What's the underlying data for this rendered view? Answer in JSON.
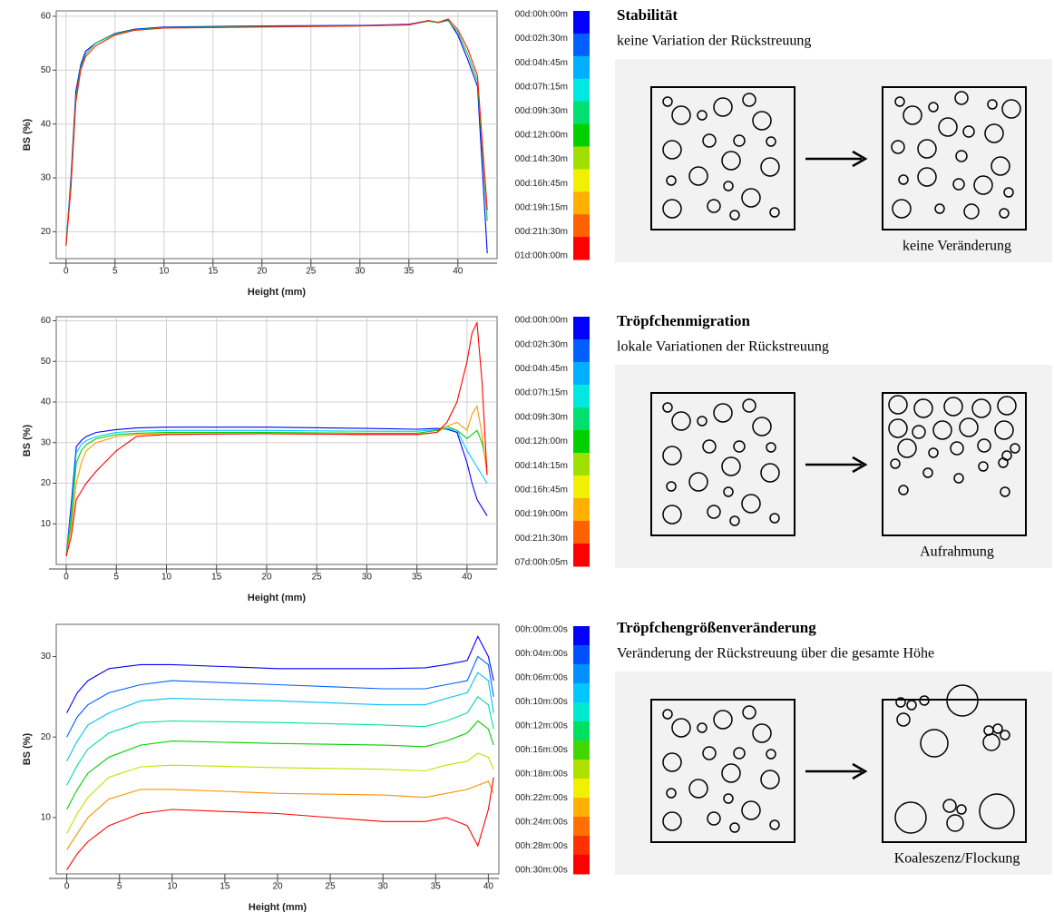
{
  "chart_data": [
    {
      "type": "line",
      "xlabel": "Height (mm)",
      "ylabel": "BS (%)",
      "xlim": [
        -1,
        44
      ],
      "ylim": [
        15,
        61
      ],
      "xticks": [
        0,
        5,
        10,
        15,
        20,
        25,
        30,
        35,
        40
      ],
      "yticks": [
        20,
        30,
        40,
        50,
        60
      ],
      "grid": true,
      "x": [
        0,
        0.5,
        1,
        1.5,
        2,
        3,
        5,
        7,
        10,
        20,
        30,
        35,
        37,
        38,
        39,
        40,
        41,
        42,
        43
      ],
      "series": [
        {
          "color": "#0000ff",
          "values": [
            17.5,
            30,
            46,
            51,
            53.5,
            55,
            56.8,
            57.6,
            58,
            58.2,
            58.3,
            58.5,
            59.2,
            58.8,
            59.3,
            56.5,
            52,
            47,
            16
          ]
        },
        {
          "color": "#00c850",
          "values": [
            17.6,
            29,
            45,
            50.5,
            53,
            55,
            56.7,
            57.5,
            57.9,
            58.1,
            58.2,
            58.4,
            59.1,
            58.8,
            59.2,
            57,
            53,
            48,
            22
          ]
        },
        {
          "color": "#ff2000",
          "values": [
            17.4,
            28,
            44,
            50,
            52.5,
            54.5,
            56.5,
            57.4,
            57.8,
            58,
            58.2,
            58.4,
            59.2,
            58.9,
            59.5,
            57.5,
            54,
            49,
            24
          ]
        }
      ],
      "colorbar": {
        "labels": [
          "00d:00h:00m",
          "00d:02h:30m",
          "00d:04h:45m",
          "00d:07h:15m",
          "00d:09h:30m",
          "00d:12h:00m",
          "00d:14h:30m",
          "00d:16h:45m",
          "00d:19h:15m",
          "00d:21h:30m",
          "01d:00h:00m"
        ],
        "colors": [
          "#0000ff",
          "#0060ff",
          "#00b0ff",
          "#00e8e0",
          "#00e070",
          "#00d000",
          "#a0e000",
          "#f0f000",
          "#ffb000",
          "#ff6000",
          "#ff0000"
        ]
      }
    },
    {
      "type": "line",
      "xlabel": "Height (mm)",
      "ylabel": "BS (%)",
      "xlim": [
        -1,
        43
      ],
      "ylim": [
        0,
        61
      ],
      "xticks": [
        0,
        5,
        10,
        15,
        20,
        25,
        30,
        35,
        40
      ],
      "yticks": [
        10,
        20,
        30,
        40,
        50,
        60
      ],
      "grid": true,
      "x": [
        0,
        0.5,
        1,
        1.5,
        2,
        3,
        5,
        7,
        10,
        20,
        30,
        35,
        37,
        38,
        39,
        40,
        40.5,
        41,
        41.5,
        42
      ],
      "series": [
        {
          "color": "#0000ff",
          "values": [
            2,
            15,
            29,
            30.5,
            31.5,
            32.5,
            33.2,
            33.6,
            33.8,
            33.8,
            33.5,
            33.3,
            33.5,
            33.3,
            32.5,
            25,
            20,
            16,
            14,
            12
          ]
        },
        {
          "color": "#00c8ff",
          "values": [
            2,
            13,
            27.5,
            29.5,
            30.5,
            31.5,
            32.5,
            32.8,
            33,
            33,
            32.8,
            32.8,
            33.2,
            33.5,
            33,
            28,
            26,
            24,
            22,
            20
          ]
        },
        {
          "color": "#00d000",
          "values": [
            2,
            11,
            25,
            28,
            29.5,
            31,
            32,
            32.3,
            32.5,
            32.5,
            32.3,
            32.3,
            33,
            34,
            33,
            31,
            32,
            33,
            30,
            24
          ]
        },
        {
          "color": "#ff9900",
          "values": [
            2,
            9,
            20,
            25,
            28,
            30,
            31.5,
            32,
            32.2,
            32.2,
            32,
            32,
            32.5,
            34,
            35,
            33,
            37,
            39,
            32,
            22
          ]
        },
        {
          "color": "#ff0000",
          "values": [
            2,
            7,
            16,
            18,
            20,
            23,
            28,
            31.5,
            32,
            32.2,
            32,
            32,
            32.5,
            35,
            40,
            50,
            57,
            59.5,
            45,
            22
          ]
        }
      ],
      "colorbar": {
        "labels": [
          "00d:00h:00m",
          "00d:02h:30m",
          "00d:04h:45m",
          "00d:07h:15m",
          "00d:09h:30m",
          "00d:12h:00m",
          "00d:14h:15m",
          "00d:16h:45m",
          "00d:19h:00m",
          "00d:21h:30m",
          "07d:00h:05m"
        ],
        "colors": [
          "#0000ff",
          "#0060ff",
          "#00b0ff",
          "#00e8e0",
          "#00e070",
          "#00d000",
          "#a0e000",
          "#f0f000",
          "#ffb000",
          "#ff6000",
          "#ff0000"
        ]
      }
    },
    {
      "type": "line",
      "xlabel": "Height (mm)",
      "ylabel": "BS (%)",
      "xlim": [
        -1,
        41
      ],
      "ylim": [
        3,
        34
      ],
      "xticks": [
        0,
        5,
        10,
        15,
        20,
        25,
        30,
        35,
        40
      ],
      "yticks": [
        10,
        20,
        30
      ],
      "grid": false,
      "x": [
        0,
        1,
        2,
        4,
        7,
        10,
        20,
        30,
        34,
        36,
        38,
        39,
        40,
        40.5
      ],
      "series": [
        {
          "color": "#0000ff",
          "values": [
            23,
            25.5,
            27,
            28.5,
            29,
            29,
            28.5,
            28.5,
            28.6,
            29,
            29.5,
            32.5,
            30,
            27
          ]
        },
        {
          "color": "#0060ff",
          "values": [
            20,
            22.5,
            24,
            25.5,
            26.5,
            27,
            26.5,
            26,
            26,
            26.5,
            27,
            30,
            29,
            25
          ]
        },
        {
          "color": "#00c0ff",
          "values": [
            17,
            19.5,
            21.5,
            23,
            24.5,
            24.8,
            24.5,
            24,
            24,
            24.8,
            25.5,
            28,
            27,
            23
          ]
        },
        {
          "color": "#00e0a0",
          "values": [
            14,
            16.5,
            18.5,
            20.5,
            21.8,
            22,
            21.8,
            21.5,
            21.3,
            22,
            23,
            25,
            24,
            21
          ]
        },
        {
          "color": "#00d000",
          "values": [
            11,
            13.5,
            15.5,
            17.5,
            19,
            19.5,
            19.2,
            19,
            18.8,
            19.5,
            20.5,
            22,
            21,
            19
          ]
        },
        {
          "color": "#c0e000",
          "values": [
            8,
            10.5,
            12.5,
            15,
            16.3,
            16.5,
            16.2,
            16,
            15.8,
            16.5,
            17,
            18,
            17.5,
            16
          ]
        },
        {
          "color": "#ff9000",
          "values": [
            6,
            8,
            10,
            12.3,
            13.5,
            13.5,
            13,
            12.8,
            12.5,
            13,
            13.5,
            14,
            14.5,
            13
          ]
        },
        {
          "color": "#ff0000",
          "values": [
            3.5,
            5.5,
            7,
            9,
            10.5,
            11,
            10.5,
            9.5,
            9.5,
            10,
            9,
            6.5,
            11,
            15
          ]
        }
      ],
      "colorbar": {
        "labels": [
          "00h:00m:00s",
          "00h:04m:00s",
          "00h:06m:00s",
          "00h:10m:00s",
          "00h:12m:00s",
          "00h:16m:00s",
          "00h:18m:00s",
          "00h:22m:00s",
          "00h:24m:00s",
          "00h:28m:00s",
          "00h:30m:00s"
        ],
        "colors": [
          "#0000ff",
          "#0050ff",
          "#0090ff",
          "#00c8ff",
          "#00e8d0",
          "#00e060",
          "#40d800",
          "#b0e000",
          "#f0f000",
          "#ffb000",
          "#ff7000",
          "#ff3000",
          "#ff0000"
        ]
      }
    }
  ],
  "panels": [
    {
      "title": "Stabilität",
      "subtitle": "keine Variation der Rückstreuung",
      "caption": "keine Veränderung"
    },
    {
      "title": "Tröpfchenmigration",
      "subtitle": "lokale Variationen der Rückstreuung",
      "caption": "Aufrahmung"
    },
    {
      "title": "Tröpfchengrößenveränderung",
      "subtitle": "Veränderung der Rückstreuung über die gesamte Höhe",
      "caption": "Koaleszenz/Flockung"
    }
  ]
}
